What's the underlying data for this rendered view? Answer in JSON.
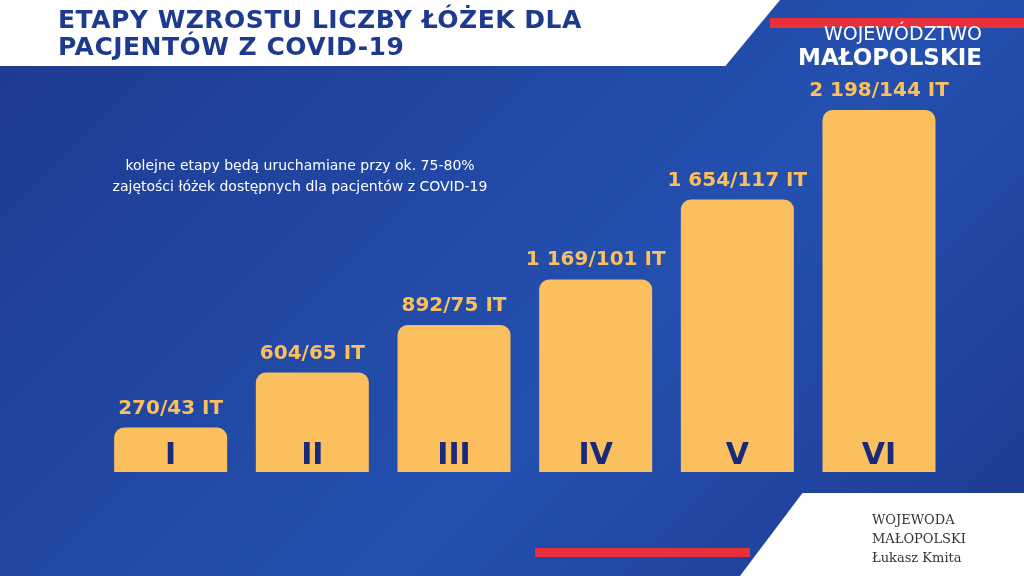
{
  "chart_data": {
    "type": "bar",
    "title": "ETAPY WZROSTU LICZBY ŁÓŻEK DLA PACJENTÓW Z COVID-19",
    "categories": [
      "I",
      "II",
      "III",
      "IV",
      "V",
      "VI"
    ],
    "values": [
      270,
      604,
      892,
      1169,
      1654,
      2198
    ],
    "value_labels": [
      "270/43 IT",
      "604/65 IT",
      "892/75 IT",
      "1 169/101 IT",
      "1 654/117 IT",
      "2 198/144 IT"
    ],
    "color": "#fcbf5e",
    "annotations": [
      "kolejne etapy będą uruchamiane przy ok. 75-80% zajętości łóżek dostępnych dla pacjentów z COVID-19",
      "WOJEWÓDZTWO",
      "MAŁOPOLSKIE",
      "WOJEWODA",
      "MAŁOPOLSKI",
      "Łukasz Kmita"
    ]
  }
}
